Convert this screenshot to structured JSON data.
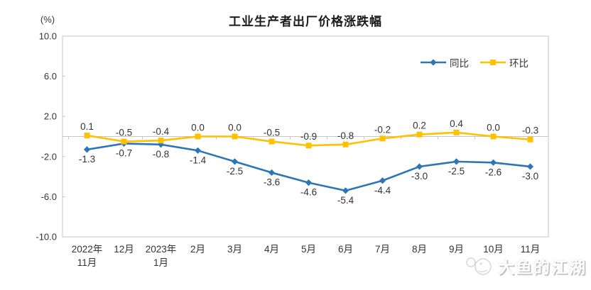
{
  "title": "工业生产者出厂价格涨跌幅",
  "unit_label": "(%)",
  "watermark": {
    "text": "大鱼的江湖",
    "icon": "fish-logo"
  },
  "chart_data": {
    "type": "line",
    "title": "工业生产者出厂价格涨跌幅",
    "categories": [
      "2022年11月",
      "12月",
      "2023年1月",
      "2月",
      "3月",
      "4月",
      "5月",
      "6月",
      "7月",
      "8月",
      "9月",
      "10月",
      "11月"
    ],
    "series": [
      {
        "name": "同比",
        "color": "#2E75B6",
        "marker": "diamond",
        "label_position": "below",
        "values": [
          -1.3,
          -0.7,
          -0.8,
          -1.4,
          -2.5,
          -3.6,
          -4.6,
          -5.4,
          -4.4,
          -3.0,
          -2.5,
          -2.6,
          -3.0
        ]
      },
      {
        "name": "环比",
        "color": "#FFC000",
        "marker": "square",
        "label_position": "above",
        "values": [
          0.1,
          -0.5,
          -0.4,
          0.0,
          0.0,
          -0.5,
          -0.9,
          -0.8,
          -0.2,
          0.2,
          0.4,
          0.0,
          -0.3
        ]
      }
    ],
    "ylabel": "(%)",
    "ylim": [
      -10,
      10
    ],
    "yticks": [
      10.0,
      6.0,
      2.0,
      -2.0,
      -6.0,
      -10.0
    ],
    "grid": false,
    "legend_position": "top-right",
    "axis_color": "#c6c6c6",
    "label_color": "#333333"
  }
}
